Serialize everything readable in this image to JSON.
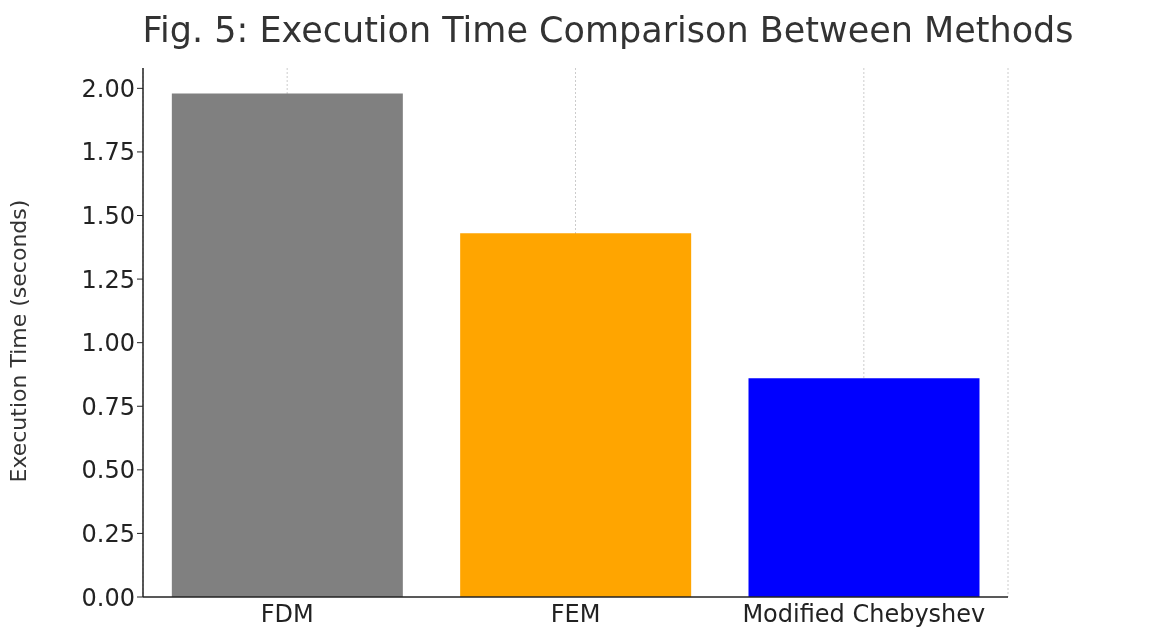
{
  "chart_data": {
    "type": "bar",
    "title": "Fig. 5: Execution Time Comparison Between Methods",
    "ylabel": "Execution Time (seconds)",
    "categories": [
      "FDM",
      "FEM",
      "Modified Chebyshev"
    ],
    "values": [
      1.98,
      1.43,
      0.86
    ],
    "colors": [
      "#808080",
      "#ffa500",
      "#0000ff"
    ],
    "ylim": [
      0,
      2.08
    ],
    "yticks": [
      {
        "value": 0,
        "label": "0.00"
      },
      {
        "value": 0.25,
        "label": "0.25"
      },
      {
        "value": 0.5,
        "label": "0.50"
      },
      {
        "value": 0.75,
        "label": "0.75"
      },
      {
        "value": 1,
        "label": "1.00"
      },
      {
        "value": 1.25,
        "label": "1.25"
      },
      {
        "value": 1.5,
        "label": "1.50"
      },
      {
        "value": 1.75,
        "label": "1.75"
      },
      {
        "value": 2,
        "label": "2.00"
      }
    ],
    "grid": "x",
    "legend": false
  }
}
